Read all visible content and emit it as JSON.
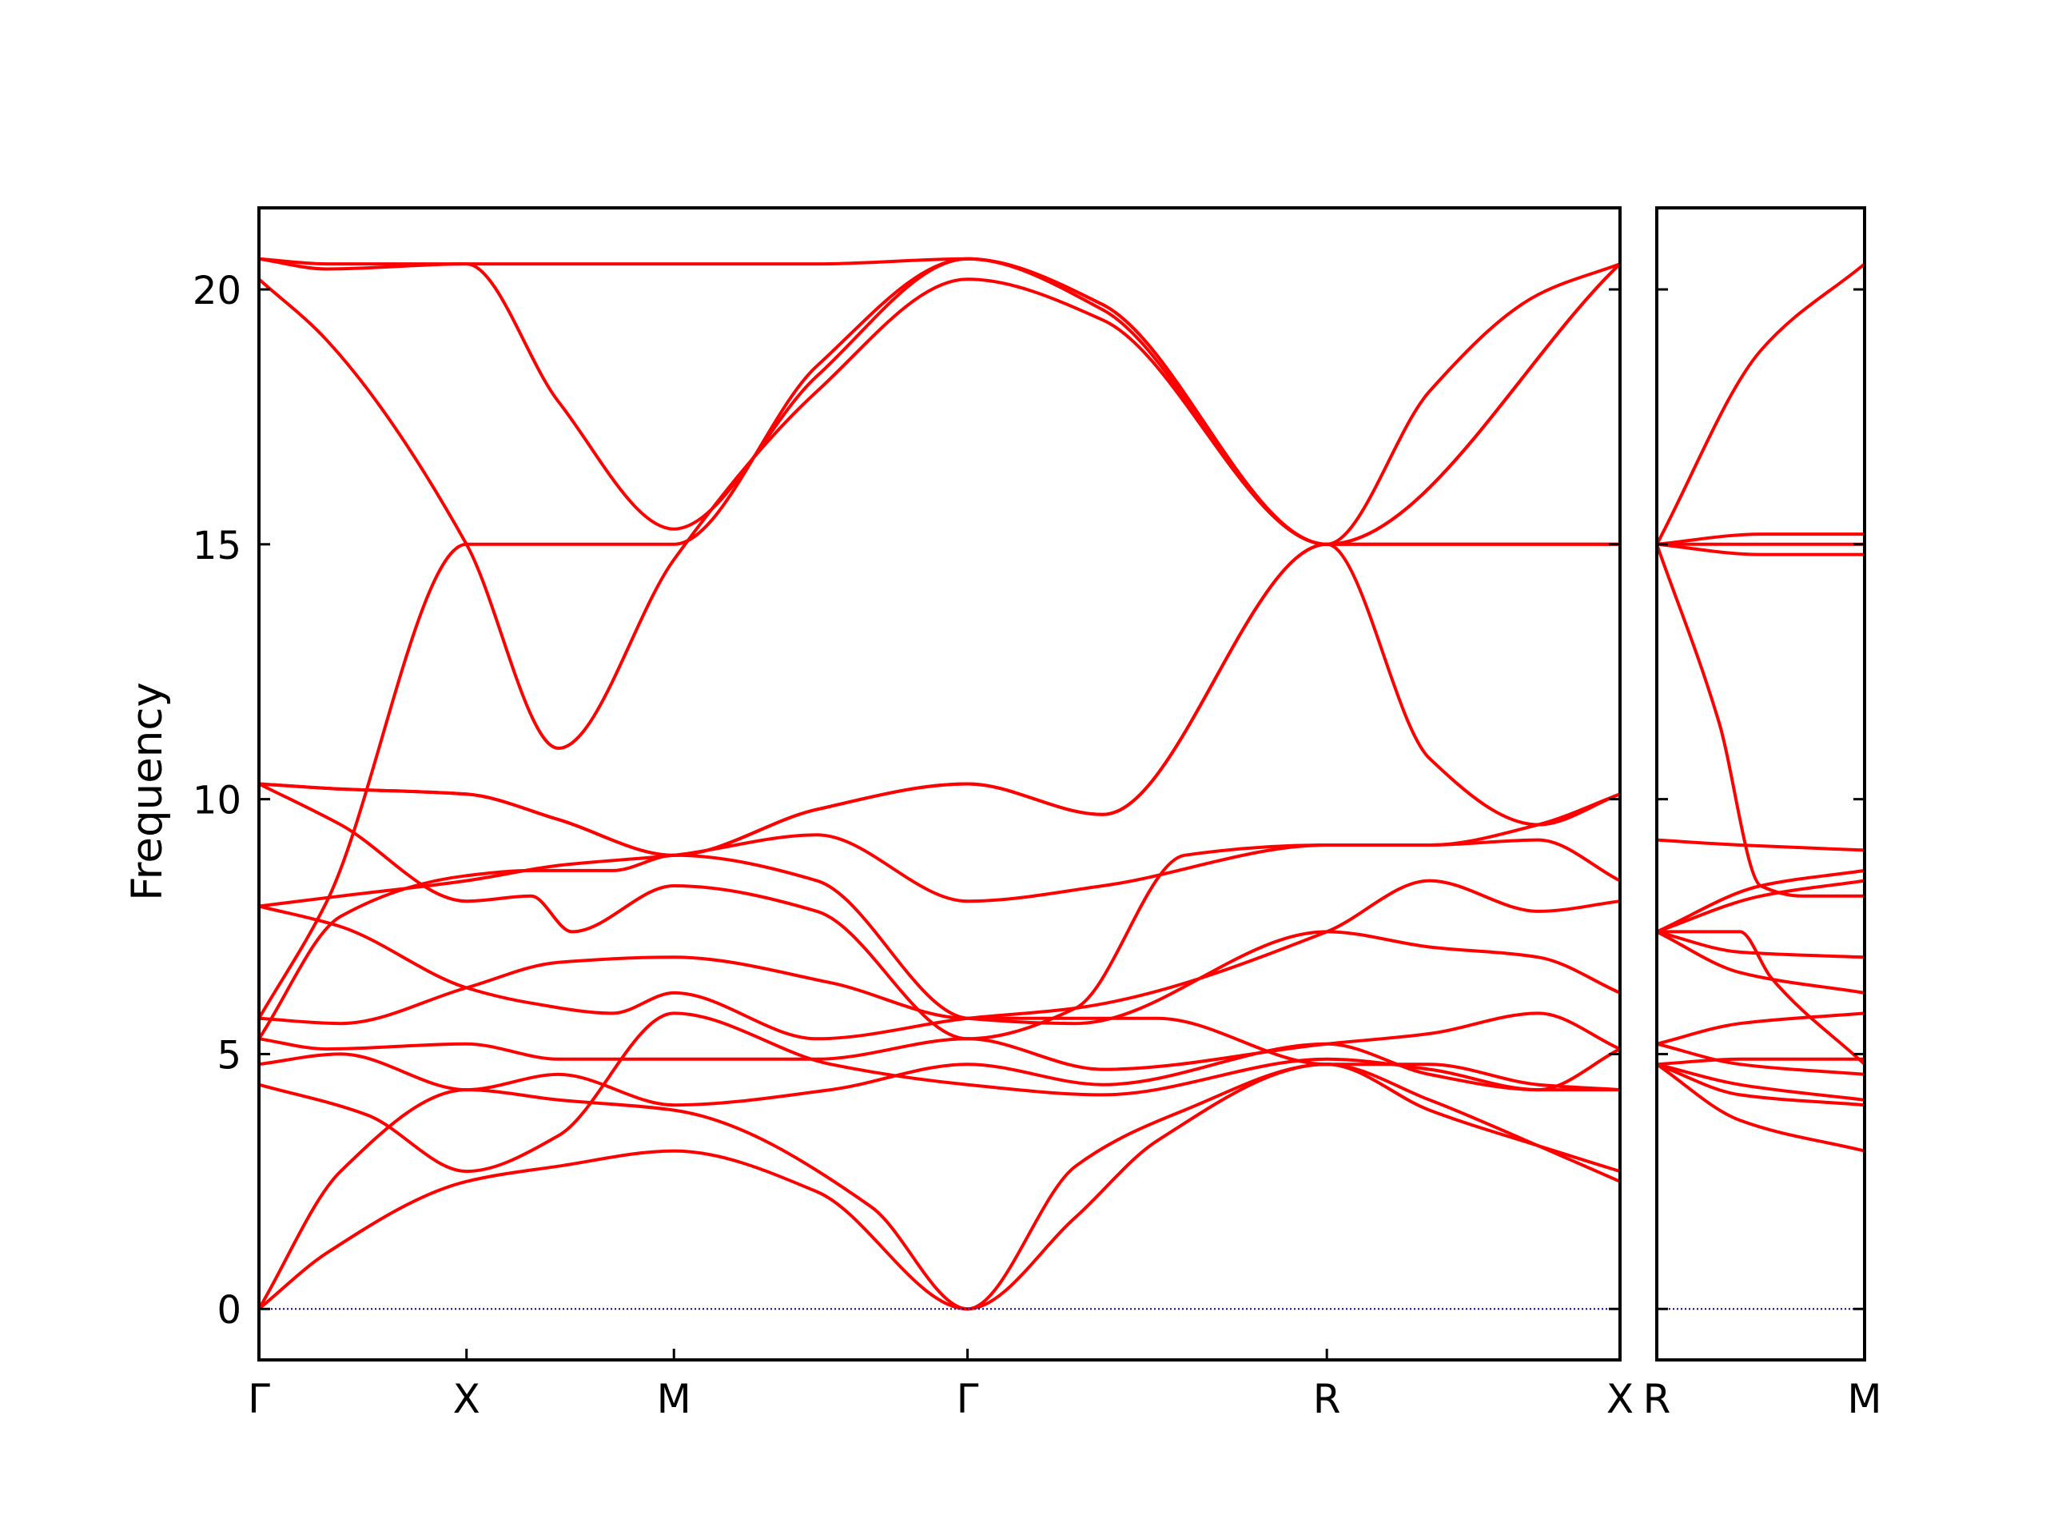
{
  "chart_data": {
    "type": "line",
    "title": "",
    "ylabel": "Frequency",
    "ylim": [
      -1.0,
      21.6
    ],
    "yticks": [
      0,
      5,
      10,
      15,
      20
    ],
    "ytick_labels": [
      "0",
      "5",
      "10",
      "15",
      "20"
    ],
    "grid": false,
    "legend": "none",
    "colors": {
      "bands": "#ff0000",
      "zero_line": "#0000aa",
      "axes": "#000000"
    },
    "panels": [
      {
        "name": "main",
        "xlim": [
          0,
          1
        ],
        "xticks": [
          0,
          0.1525,
          0.3049,
          0.5206,
          0.7846,
          1.0
        ],
        "xtick_labels": [
          "Γ",
          "X",
          "M",
          "Γ",
          "R",
          "X"
        ],
        "bands": [
          {
            "x": [
              0,
              0.05,
              0.1525,
              0.22,
              0.3049,
              0.41,
              0.5206,
              0.6,
              0.66,
              0.7846,
              0.86,
              0.94,
              1.0
            ],
            "y": [
              0,
              1.1,
              2.5,
              2.8,
              3.1,
              2.3,
              0,
              1.8,
              3.3,
              4.8,
              3.9,
              3.2,
              2.7
            ]
          },
          {
            "x": [
              0,
              0.06,
              0.1525,
              0.22,
              0.3049,
              0.45,
              0.5206,
              0.6,
              0.68,
              0.7846,
              0.86,
              0.94,
              1.0
            ],
            "y": [
              0,
              2.7,
              4.3,
              4.1,
              3.9,
              2.0,
              0,
              2.8,
              3.9,
              4.8,
              4.1,
              3.2,
              2.5
            ]
          },
          {
            "x": [
              0,
              0.08,
              0.1525,
              0.22,
              0.3049,
              0.42,
              0.5206,
              0.62,
              0.7846,
              0.86,
              0.94,
              1.0
            ],
            "y": [
              4.4,
              3.8,
              2.7,
              3.4,
              5.8,
              4.8,
              4.4,
              4.2,
              4.9,
              4.7,
              4.3,
              4.3
            ]
          },
          {
            "x": [
              0,
              0.06,
              0.1525,
              0.22,
              0.3049,
              0.42,
              0.5206,
              0.62,
              0.7846,
              0.86,
              0.94,
              1.0
            ],
            "y": [
              4.8,
              5.0,
              4.3,
              4.6,
              4.0,
              4.3,
              4.8,
              4.4,
              5.2,
              4.6,
              4.3,
              5.1
            ]
          },
          {
            "x": [
              0,
              0.05,
              0.1525,
              0.22,
              0.3049,
              0.41,
              0.5206,
              0.62,
              0.7846,
              0.86,
              0.94,
              1.0
            ],
            "y": [
              5.3,
              5.1,
              5.2,
              4.9,
              4.9,
              4.9,
              5.3,
              4.7,
              5.2,
              5.4,
              5.8,
              5.1
            ]
          },
          {
            "x": [
              0,
              0.06,
              0.1525,
              0.22,
              0.3049,
              0.42,
              0.5206,
              0.6,
              0.66,
              0.7846,
              0.86,
              0.94,
              1.0
            ],
            "y": [
              5.7,
              5.6,
              6.3,
              6.8,
              6.9,
              6.4,
              5.7,
              5.7,
              5.7,
              4.8,
              4.8,
              4.4,
              4.3
            ]
          },
          {
            "x": [
              0,
              0.06,
              0.1525,
              0.2,
              0.26,
              0.3049,
              0.41,
              0.5206,
              0.6,
              0.7846,
              0.86,
              0.94,
              1.0
            ],
            "y": [
              5.3,
              7.7,
              8.5,
              8.6,
              8.6,
              8.9,
              8.4,
              5.7,
              5.6,
              7.4,
              7.1,
              6.9,
              6.2
            ]
          },
          {
            "x": [
              0,
              0.06,
              0.1525,
              0.2,
              0.26,
              0.3049,
              0.41,
              0.5206,
              0.6,
              0.7846,
              0.86,
              0.94,
              1.0
            ],
            "y": [
              7.9,
              7.5,
              6.3,
              6.0,
              5.8,
              6.2,
              5.3,
              5.7,
              5.9,
              7.4,
              8.4,
              7.8,
              8.0
            ]
          },
          {
            "x": [
              0,
              0.06,
              0.1525,
              0.2,
              0.23,
              0.3049,
              0.41,
              0.5206,
              0.6,
              0.68,
              0.7846,
              0.86,
              0.94,
              1.0
            ],
            "y": [
              10.3,
              9.5,
              8.0,
              8.1,
              7.4,
              8.3,
              7.8,
              5.3,
              5.9,
              8.9,
              9.1,
              9.1,
              9.2,
              8.4
            ]
          },
          {
            "x": [
              0,
              0.06,
              0.1525,
              0.22,
              0.3049,
              0.41,
              0.5206,
              0.62,
              0.7846,
              0.86,
              0.94,
              1.0
            ],
            "y": [
              7.9,
              8.1,
              8.4,
              8.7,
              8.9,
              9.3,
              8.0,
              8.3,
              9.1,
              9.1,
              9.5,
              10.1
            ]
          },
          {
            "x": [
              0,
              0.06,
              0.1525,
              0.22,
              0.3049,
              0.41,
              0.5206,
              0.62,
              0.7846,
              0.86,
              0.94,
              1.0
            ],
            "y": [
              10.3,
              10.2,
              10.1,
              9.6,
              8.9,
              9.8,
              10.3,
              9.7,
              15.0,
              10.8,
              9.5,
              10.1
            ]
          },
          {
            "x": [
              0,
              0.06,
              0.1525,
              0.22,
              0.3049,
              0.41,
              0.5206,
              0.62,
              0.7846,
              0.86,
              0.94,
              1.0
            ],
            "y": [
              10.3,
              10.2,
              10.1,
              9.6,
              8.9,
              9.8,
              10.3,
              9.7,
              15.0,
              15.0,
              15.0,
              15.0
            ]
          },
          {
            "x": [
              0,
              0.05,
              0.1525,
              0.22,
              0.3049,
              0.41,
              0.5206,
              0.62,
              0.7846,
              0.86,
              0.94,
              1.0
            ],
            "y": [
              5.7,
              8.0,
              15.0,
              15.0,
              15.0,
              18.5,
              20.6,
              19.6,
              15.0,
              18.0,
              19.9,
              20.5
            ]
          },
          {
            "x": [
              0,
              0.05,
              0.1525,
              0.22,
              0.3049,
              0.41,
              0.5206,
              0.62,
              0.7846,
              0.86,
              0.94,
              1.0
            ],
            "y": [
              20.2,
              19.0,
              15.0,
              11.0,
              14.7,
              18.0,
              20.2,
              19.4,
              15.0,
              15.0,
              15.0,
              15.0
            ]
          },
          {
            "x": [
              0,
              0.05,
              0.1525,
              0.22,
              0.3049,
              0.41,
              0.5206,
              0.62,
              0.7846,
              1.0
            ],
            "y": [
              20.6,
              20.4,
              20.5,
              17.8,
              15.3,
              18.3,
              20.6,
              19.7,
              15.0,
              20.5
            ]
          },
          {
            "x": [
              0,
              0.05,
              0.1525,
              0.22,
              0.3049,
              0.41,
              0.5206,
              0.62,
              0.7846,
              1.0
            ],
            "y": [
              20.6,
              20.5,
              20.5,
              20.5,
              20.5,
              20.5,
              20.6,
              19.7,
              15.0,
              20.5
            ]
          }
        ]
      },
      {
        "name": "side",
        "xlim": [
          0,
          1
        ],
        "xticks": [
          0,
          1.0
        ],
        "xtick_labels": [
          "R",
          "M"
        ],
        "bands": [
          {
            "x": [
              0,
              0.4,
              1.0
            ],
            "y": [
              4.8,
              3.7,
              3.1
            ]
          },
          {
            "x": [
              0,
              0.4,
              1.0
            ],
            "y": [
              4.8,
              4.2,
              4.0
            ]
          },
          {
            "x": [
              0,
              0.4,
              1.0
            ],
            "y": [
              4.8,
              4.4,
              4.1
            ]
          },
          {
            "x": [
              0,
              0.4,
              1.0
            ],
            "y": [
              5.2,
              5.6,
              5.8
            ]
          },
          {
            "x": [
              0,
              0.4,
              1.0
            ],
            "y": [
              5.2,
              4.8,
              4.6
            ]
          },
          {
            "x": [
              0,
              0.4,
              1.0
            ],
            "y": [
              4.8,
              4.9,
              4.9
            ]
          },
          {
            "x": [
              0,
              0.4,
              1.0
            ],
            "y": [
              7.4,
              6.6,
              6.2
            ]
          },
          {
            "x": [
              0,
              0.4,
              1.0
            ],
            "y": [
              7.4,
              7.0,
              6.9
            ]
          },
          {
            "x": [
              0,
              0.4,
              0.55,
              1.0
            ],
            "y": [
              7.4,
              7.4,
              6.5,
              4.8
            ]
          },
          {
            "x": [
              0,
              0.5,
              1.0
            ],
            "y": [
              7.4,
              8.1,
              8.4
            ]
          },
          {
            "x": [
              0,
              0.5,
              1.0
            ],
            "y": [
              7.4,
              8.3,
              8.6
            ]
          },
          {
            "x": [
              0,
              0.4,
              1.0
            ],
            "y": [
              9.2,
              9.1,
              9.0
            ]
          },
          {
            "x": [
              0,
              0.3,
              0.5,
              0.7,
              1.0
            ],
            "y": [
              15.0,
              11.5,
              8.3,
              8.1,
              8.1
            ]
          },
          {
            "x": [
              0,
              0.5,
              1.0
            ],
            "y": [
              15.0,
              14.8,
              14.8
            ]
          },
          {
            "x": [
              0,
              0.5,
              1.0
            ],
            "y": [
              15.0,
              15.0,
              15.0
            ]
          },
          {
            "x": [
              0,
              0.5,
              1.0
            ],
            "y": [
              15.0,
              15.2,
              15.2
            ]
          },
          {
            "x": [
              0,
              0.5,
              1.0
            ],
            "y": [
              15.0,
              18.8,
              20.5
            ]
          }
        ]
      }
    ]
  }
}
